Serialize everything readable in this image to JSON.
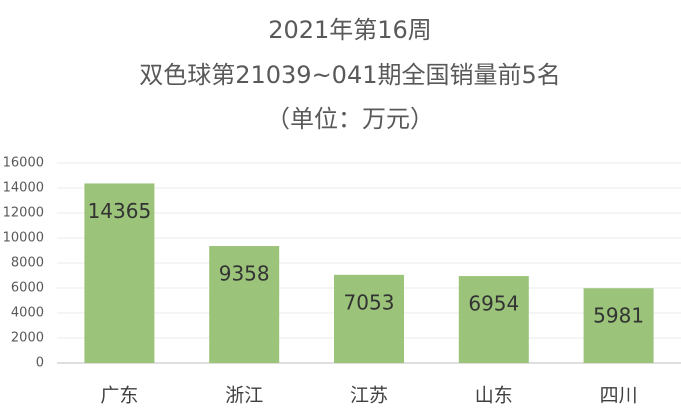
{
  "chart_data": {
    "type": "bar",
    "title": "2021年第16周",
    "subtitle": "双色球第21039~041期全国销量前5名",
    "unit_note": "（单位：万元）",
    "categories": [
      "广东",
      "浙江",
      "江苏",
      "山东",
      "四川"
    ],
    "values": [
      14365,
      9358,
      7053,
      6954,
      5981
    ],
    "color": "#9bc47a",
    "ylim": [
      0,
      16000
    ],
    "yticks": [
      0,
      2000,
      4000,
      6000,
      8000,
      10000,
      12000,
      14000,
      16000
    ],
    "grid": true
  }
}
